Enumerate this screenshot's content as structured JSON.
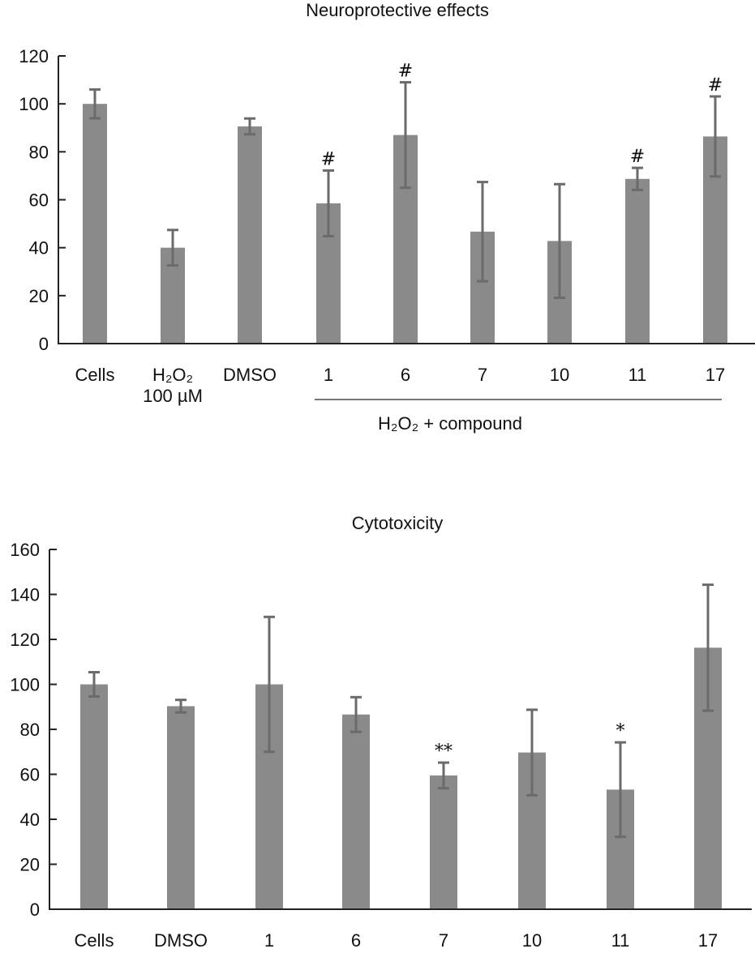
{
  "chart_data": [
    {
      "type": "bar",
      "title": "Neuroprotective effects",
      "xlabel": "",
      "ylabel": "",
      "ylim": [
        0,
        120
      ],
      "yticks": [
        0,
        20,
        40,
        60,
        80,
        100,
        120
      ],
      "grid": false,
      "categories": [
        "Cells",
        "H₂O₂",
        "DMSO",
        "1",
        "6",
        "7",
        "10",
        "11",
        "17"
      ],
      "category_sublabels": [
        "",
        "100 µM",
        "",
        "",
        "",
        "",
        "",
        "",
        ""
      ],
      "values": [
        100,
        40,
        90.6,
        58.5,
        87,
        46.7,
        42.8,
        68.7,
        86.4
      ],
      "errors": [
        6,
        7.4,
        3.3,
        13.7,
        22,
        20.7,
        23.7,
        4.6,
        16.7
      ],
      "annotations": [
        "",
        "",
        "",
        "#",
        "#",
        "",
        "",
        "#",
        "#"
      ],
      "group_label": "H₂O₂ + compound",
      "group_range": [
        "1",
        "17"
      ],
      "bar_color": "#8a8a8a",
      "error_color": "#6b6b6b"
    },
    {
      "type": "bar",
      "title": "Cytotoxicity",
      "xlabel": "",
      "ylabel": "",
      "ylim": [
        0,
        160
      ],
      "yticks": [
        0,
        20,
        40,
        60,
        80,
        100,
        120,
        140,
        160
      ],
      "grid": false,
      "categories": [
        "Cells",
        "DMSO",
        "1",
        "6",
        "7",
        "10",
        "11",
        "17"
      ],
      "values": [
        100,
        90.3,
        100,
        86.6,
        59.5,
        69.7,
        53.2,
        116.3
      ],
      "errors": [
        5.4,
        2.8,
        30,
        7.7,
        5.7,
        19,
        21,
        28
      ],
      "annotations": [
        "",
        "",
        "",
        "",
        "**",
        "",
        "*",
        ""
      ],
      "bar_color": "#8a8a8a",
      "error_color": "#6b6b6b"
    }
  ]
}
